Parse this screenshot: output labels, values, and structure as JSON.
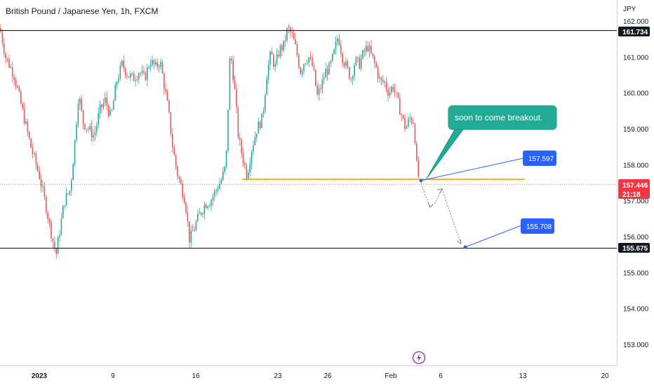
{
  "header": {
    "title": "British Pound / Japanese Yen, 1h, FXCM"
  },
  "chart_data": {
    "type": "candlestick",
    "symbol": "GBPJPY",
    "title": "British Pound / Japanese Yen, 1h, FXCM",
    "currency_label": "JPY",
    "ylim": [
      152.6,
      162.3
    ],
    "y_ticks": [
      "153.000",
      "154.000",
      "155.000",
      "156.000",
      "157.000",
      "158.000",
      "159.000",
      "160.000",
      "161.000",
      "162.000"
    ],
    "x_ticks": [
      "2023",
      "9",
      "16",
      "23",
      "26",
      "Feb",
      "6",
      "13",
      "20"
    ],
    "price_path": [
      [
        0,
        161.8
      ],
      [
        8,
        161.0
      ],
      [
        20,
        160.5
      ],
      [
        32,
        159.5
      ],
      [
        44,
        158.5
      ],
      [
        56,
        157.7
      ],
      [
        66,
        156.8
      ],
      [
        74,
        156.0
      ],
      [
        80,
        155.5
      ],
      [
        86,
        156.3
      ],
      [
        92,
        157.0
      ],
      [
        100,
        157.3
      ],
      [
        106,
        158.5
      ],
      [
        112,
        160.0
      ],
      [
        118,
        159.2
      ],
      [
        126,
        159.0
      ],
      [
        134,
        158.8
      ],
      [
        142,
        159.5
      ],
      [
        150,
        159.8
      ],
      [
        158,
        159.3
      ],
      [
        166,
        160.3
      ],
      [
        174,
        160.8
      ],
      [
        182,
        160.5
      ],
      [
        190,
        160.4
      ],
      [
        198,
        160.6
      ],
      [
        206,
        160.4
      ],
      [
        214,
        160.9
      ],
      [
        222,
        160.7
      ],
      [
        228,
        160.9
      ],
      [
        234,
        160.2
      ],
      [
        240,
        159.5
      ],
      [
        246,
        158.5
      ],
      [
        252,
        157.8
      ],
      [
        258,
        157.4
      ],
      [
        264,
        157.0
      ],
      [
        270,
        155.9
      ],
      [
        276,
        156.2
      ],
      [
        284,
        156.6
      ],
      [
        292,
        156.9
      ],
      [
        300,
        157.0
      ],
      [
        308,
        157.3
      ],
      [
        316,
        157.6
      ],
      [
        322,
        158.0
      ],
      [
        328,
        161.2
      ],
      [
        334,
        160.2
      ],
      [
        340,
        158.7
      ],
      [
        346,
        158.2
      ],
      [
        352,
        157.7
      ],
      [
        358,
        158.4
      ],
      [
        366,
        159.0
      ],
      [
        374,
        159.3
      ],
      [
        380,
        160.5
      ],
      [
        386,
        161.1
      ],
      [
        392,
        160.7
      ],
      [
        398,
        161.2
      ],
      [
        404,
        161.3
      ],
      [
        410,
        161.8
      ],
      [
        416,
        161.6
      ],
      [
        422,
        161.2
      ],
      [
        428,
        160.6
      ],
      [
        434,
        160.9
      ],
      [
        440,
        161.0
      ],
      [
        446,
        160.7
      ],
      [
        452,
        159.9
      ],
      [
        458,
        160.2
      ],
      [
        464,
        160.6
      ],
      [
        470,
        160.7
      ],
      [
        476,
        161.1
      ],
      [
        482,
        161.6
      ],
      [
        488,
        161.0
      ],
      [
        494,
        160.7
      ],
      [
        500,
        160.4
      ],
      [
        506,
        160.9
      ],
      [
        512,
        160.8
      ],
      [
        518,
        161.1
      ],
      [
        524,
        161.3
      ],
      [
        530,
        161.0
      ],
      [
        536,
        160.7
      ],
      [
        542,
        160.3
      ],
      [
        548,
        160.3
      ],
      [
        554,
        160.0
      ],
      [
        560,
        160.2
      ],
      [
        566,
        159.8
      ],
      [
        572,
        159.4
      ],
      [
        578,
        159.0
      ],
      [
        584,
        159.3
      ],
      [
        590,
        159.2
      ],
      [
        594,
        157.9
      ],
      [
        598,
        157.5
      ]
    ],
    "levels": [
      {
        "name": "resistance",
        "price": 161.734,
        "label": "161.734",
        "color": "#000000"
      },
      {
        "name": "breakout-level",
        "price": 157.597,
        "color": "#ff9800"
      },
      {
        "name": "support",
        "price": 155.675,
        "label": "155.675",
        "color": "#000000"
      }
    ],
    "current_price": {
      "value": "157.446",
      "countdown": "21:18",
      "color": "#f23645"
    },
    "annotations": {
      "callout": "soon to come breakout.",
      "tag_upper": "157.597",
      "tag_lower": "155.708"
    },
    "colors": {
      "up": "#26a69a",
      "down": "#ef5350",
      "tag_blue": "#2962ff",
      "callout_teal": "#22ab94",
      "projection": "#787b86"
    }
  }
}
